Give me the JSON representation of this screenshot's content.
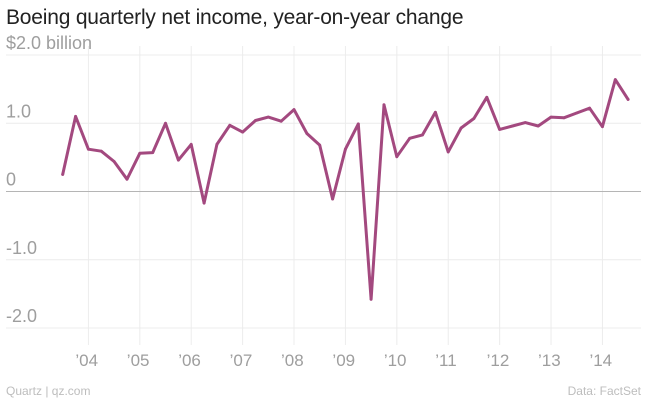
{
  "chart_data": {
    "type": "line",
    "title": "Boeing quarterly net income, year-on-year change",
    "y_unit_label": "$2.0 billion",
    "ylim": [
      -2.0,
      2.0
    ],
    "y_ticks": [
      {
        "value": 2.0,
        "label": "$2.0 billion"
      },
      {
        "value": 1.0,
        "label": "1.0"
      },
      {
        "value": 0,
        "label": "0"
      },
      {
        "value": -1.0,
        "label": "-1.0"
      },
      {
        "value": -2.0,
        "label": "-2.0"
      }
    ],
    "x_ticks": [
      {
        "year": 2004,
        "label": "’04"
      },
      {
        "year": 2005,
        "label": "’05"
      },
      {
        "year": 2006,
        "label": "’06"
      },
      {
        "year": 2007,
        "label": "’07"
      },
      {
        "year": 2008,
        "label": "’08"
      },
      {
        "year": 2009,
        "label": "’09"
      },
      {
        "year": 2010,
        "label": "’10"
      },
      {
        "year": 2011,
        "label": "’11"
      },
      {
        "year": 2012,
        "label": "’12"
      },
      {
        "year": 2013,
        "label": "’13"
      },
      {
        "year": 2014,
        "label": "’14"
      }
    ],
    "xlim": [
      2003.0,
      2014.75
    ],
    "grid": true,
    "line_color": "#a3497f",
    "series": [
      {
        "x": [
          2003.5,
          2003.75,
          2004.0,
          2004.25,
          2004.5,
          2004.75,
          2005.0,
          2005.25,
          2005.5,
          2005.75,
          2006.0,
          2006.25,
          2006.5,
          2006.75,
          2007.0,
          2007.25,
          2007.5,
          2007.75,
          2008.0,
          2008.25,
          2008.5,
          2008.75,
          2009.0,
          2009.25,
          2009.5,
          2009.75,
          2010.0,
          2010.25,
          2010.5,
          2010.75,
          2011.0,
          2011.25,
          2011.5,
          2011.75,
          2012.0,
          2012.25,
          2012.5,
          2012.75,
          2013.0,
          2013.25,
          2013.5,
          2013.75,
          2014.0,
          2014.25,
          2014.5
        ],
        "values": [
          0.25,
          1.1,
          0.62,
          0.59,
          0.44,
          0.18,
          0.56,
          0.57,
          1.0,
          0.46,
          0.69,
          -0.17,
          0.69,
          0.97,
          0.87,
          1.04,
          1.09,
          1.03,
          1.2,
          0.85,
          0.68,
          -0.11,
          0.62,
          0.99,
          -1.58,
          1.27,
          0.51,
          0.78,
          0.83,
          1.16,
          0.58,
          0.93,
          1.07,
          1.38,
          0.91,
          0.96,
          1.01,
          0.96,
          1.09,
          1.08,
          1.15,
          1.22,
          0.95,
          1.64,
          1.35
        ]
      }
    ]
  },
  "footer": {
    "source_left": "Quartz | qz.com",
    "source_right": "Data: FactSet"
  }
}
